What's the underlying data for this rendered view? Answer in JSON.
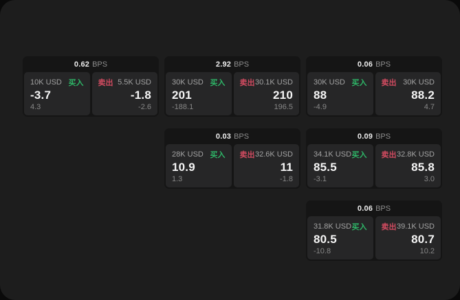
{
  "colors": {
    "surface_bg": "#1d1d1d",
    "outside_bg": "#0a0a0a",
    "card_bg": "#151515",
    "panel_bg": "#262627",
    "buy": "#2eb567",
    "sell": "#d14b60"
  },
  "cards": [
    {
      "bps_value": "0.62",
      "bps_unit": "BPS",
      "buy": {
        "amount": "10K USD",
        "side": "买入",
        "price": "-3.7",
        "delta": "4.3"
      },
      "sell": {
        "amount": "5.5K USD",
        "side": "卖出",
        "price": "-1.8",
        "delta": "-2.6"
      }
    },
    {
      "bps_value": "2.92",
      "bps_unit": "BPS",
      "buy": {
        "amount": "30K USD",
        "side": "买入",
        "price": "201",
        "delta": "-188.1"
      },
      "sell": {
        "amount": "30.1K USD",
        "side": "卖出",
        "price": "210",
        "delta": "196.5"
      }
    },
    {
      "bps_value": "0.06",
      "bps_unit": "BPS",
      "buy": {
        "amount": "30K USD",
        "side": "买入",
        "price": "88",
        "delta": "-4.9"
      },
      "sell": {
        "amount": "30K USD",
        "side": "卖出",
        "price": "88.2",
        "delta": "4.7"
      }
    },
    {
      "bps_value": "0.03",
      "bps_unit": "BPS",
      "buy": {
        "amount": "28K USD",
        "side": "买入",
        "price": "10.9",
        "delta": "1.3"
      },
      "sell": {
        "amount": "32.6K USD",
        "side": "卖出",
        "price": "11",
        "delta": "-1.8"
      }
    },
    {
      "bps_value": "0.09",
      "bps_unit": "BPS",
      "buy": {
        "amount": "34.1K USD",
        "side": "买入",
        "price": "85.5",
        "delta": "-3.1"
      },
      "sell": {
        "amount": "32.8K USD",
        "side": "卖出",
        "price": "85.8",
        "delta": "3.0"
      }
    },
    {
      "bps_value": "0.06",
      "bps_unit": "BPS",
      "buy": {
        "amount": "31.8K USD",
        "side": "买入",
        "price": "80.5",
        "delta": "-10.8"
      },
      "sell": {
        "amount": "39.1K USD",
        "side": "卖出",
        "price": "80.7",
        "delta": "10.2"
      }
    }
  ]
}
